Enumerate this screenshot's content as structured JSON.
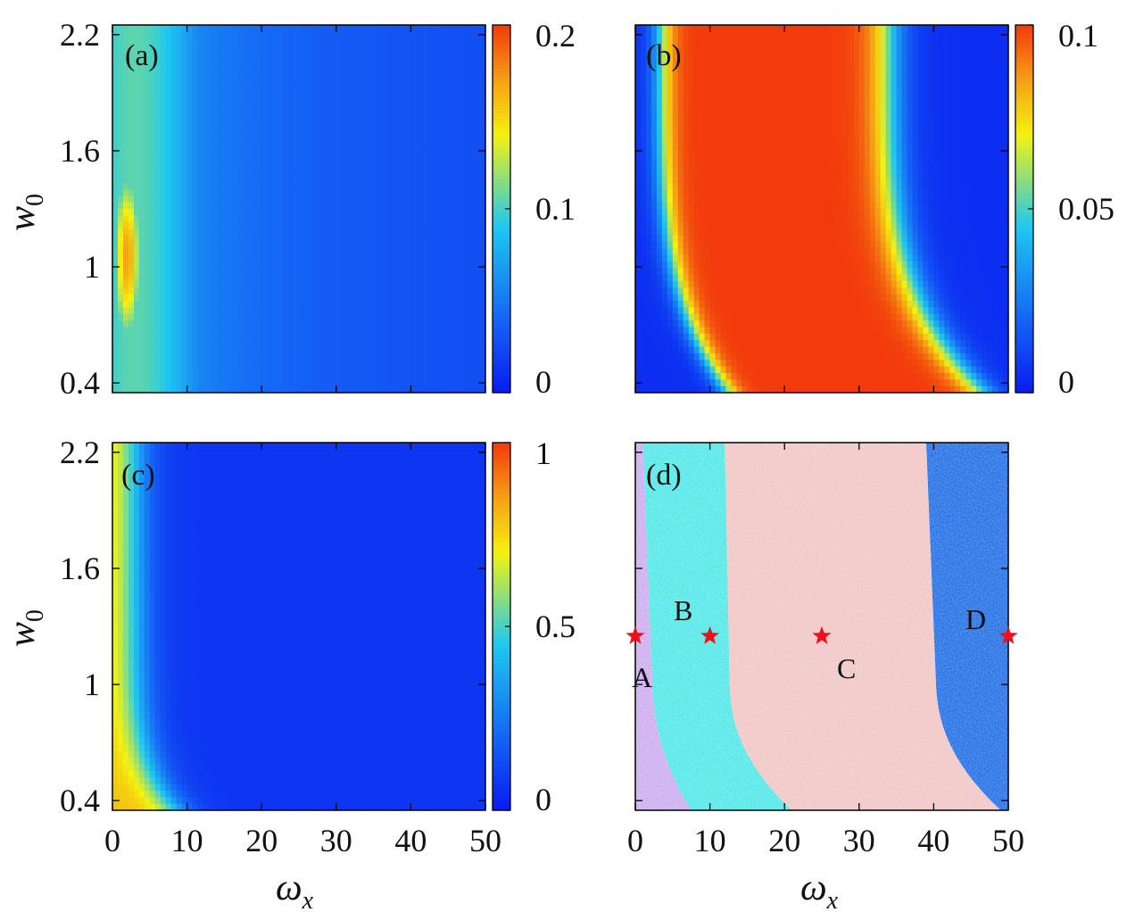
{
  "colors": {
    "colormap": [
      "#0a1cf0",
      "#1565f5",
      "#1ec8f0",
      "#f4f20f",
      "#f4a014",
      "#f23a0c"
    ],
    "region_A": "#c9a8ee",
    "region_B": "#48e6e6",
    "region_C": "#f0c2c2",
    "region_D": "#1566e4",
    "star": "#f0101a"
  },
  "chart_data": [
    {
      "type": "heatmap",
      "panel": "(a)",
      "xlabel": "",
      "ylabel": "w0",
      "ylabel_main": "w",
      "ylabel_sub": "0",
      "xlim": [
        0,
        50
      ],
      "ylim": [
        0.35,
        2.25
      ],
      "xticks": [
        0,
        10,
        20,
        30,
        40,
        50
      ],
      "yticks": [
        0.4,
        1,
        1.6,
        2.2
      ],
      "ytick_labels": [
        "0.4",
        "1",
        "1.6",
        "2.2"
      ],
      "colorbar": {
        "min": 0,
        "max": 0.2,
        "ticks": [
          0,
          0.1,
          0.2
        ],
        "labels": [
          "0",
          "0.1",
          "0.2"
        ]
      },
      "features": "maximum of about 0.17 near ωx = 2, w0 = 1; values decay to near 0.03 for ωx > 20"
    },
    {
      "type": "heatmap",
      "panel": "(b)",
      "xlabel": "",
      "ylabel": "",
      "xlim": [
        0,
        50
      ],
      "ylim": [
        0.35,
        2.25
      ],
      "xticks": [
        0,
        10,
        20,
        30,
        40,
        50
      ],
      "yticks": [
        0.4,
        1,
        1.6,
        2.2
      ],
      "colorbar": {
        "min": 0,
        "max": 0.1,
        "ticks": [
          0,
          0.05,
          0.1
        ],
        "labels": [
          "0",
          "0.05",
          "0.1"
        ]
      },
      "features": "broad plateau of about 0.1 between ωx ≈ 6 and ωx ≈ 33 that shifts right at small w0; near 0 at ωx < 2 and ωx > 45"
    },
    {
      "type": "heatmap",
      "panel": "(c)",
      "xlabel": "ωx",
      "xlabel_main": "ω",
      "xlabel_sub": "x",
      "ylabel": "w0",
      "ylabel_main": "w",
      "ylabel_sub": "0",
      "xlim": [
        0,
        50
      ],
      "ylim": [
        0.35,
        2.25
      ],
      "xticks": [
        0,
        10,
        20,
        30,
        40,
        50
      ],
      "xtick_labels": [
        "0",
        "10",
        "20",
        "30",
        "40",
        "50"
      ],
      "yticks": [
        0.4,
        1,
        1.6,
        2.2
      ],
      "ytick_labels": [
        "0.4",
        "1",
        "1.6",
        "2.2"
      ],
      "colorbar": {
        "min": 0,
        "max": 1,
        "ticks": [
          0,
          0.5,
          1
        ],
        "labels": [
          "0",
          "0.5",
          "1"
        ]
      },
      "features": "about 0.75 at ωx ≈ 0, falling to near 0.05 for ωx > 10"
    },
    {
      "type": "region_map",
      "panel": "(d)",
      "xlabel": "ωx",
      "xlabel_main": "ω",
      "xlabel_sub": "x",
      "xlim": [
        0,
        50
      ],
      "ylim": [
        0.35,
        2.25
      ],
      "xticks": [
        0,
        10,
        20,
        30,
        40,
        50
      ],
      "xtick_labels": [
        "0",
        "10",
        "20",
        "30",
        "40",
        "50"
      ],
      "yticks": [
        0.4,
        1,
        1.6,
        2.2
      ],
      "boundaries": [
        {
          "name": "A/B",
          "w0_top": 2.25,
          "w0_bottom": 0.35,
          "omega_top": 1,
          "omega_knee": 3,
          "omega_bottom": 7.5
        },
        {
          "name": "B/C",
          "w0_top": 2.25,
          "w0_bottom": 0.35,
          "omega_top": 12,
          "omega_knee": 13,
          "omega_bottom": 21
        },
        {
          "name": "C/D",
          "w0_top": 2.25,
          "w0_bottom": 0.35,
          "omega_top": 39,
          "omega_knee": 41,
          "omega_bottom": 49
        }
      ],
      "regions": [
        {
          "label": "A",
          "star": {
            "x": 0,
            "y": 1.25
          }
        },
        {
          "label": "B",
          "star": {
            "x": 10,
            "y": 1.25
          }
        },
        {
          "label": "C",
          "star": {
            "x": 25,
            "y": 1.25
          }
        },
        {
          "label": "D",
          "star": {
            "x": 50,
            "y": 1.25
          }
        }
      ]
    }
  ]
}
